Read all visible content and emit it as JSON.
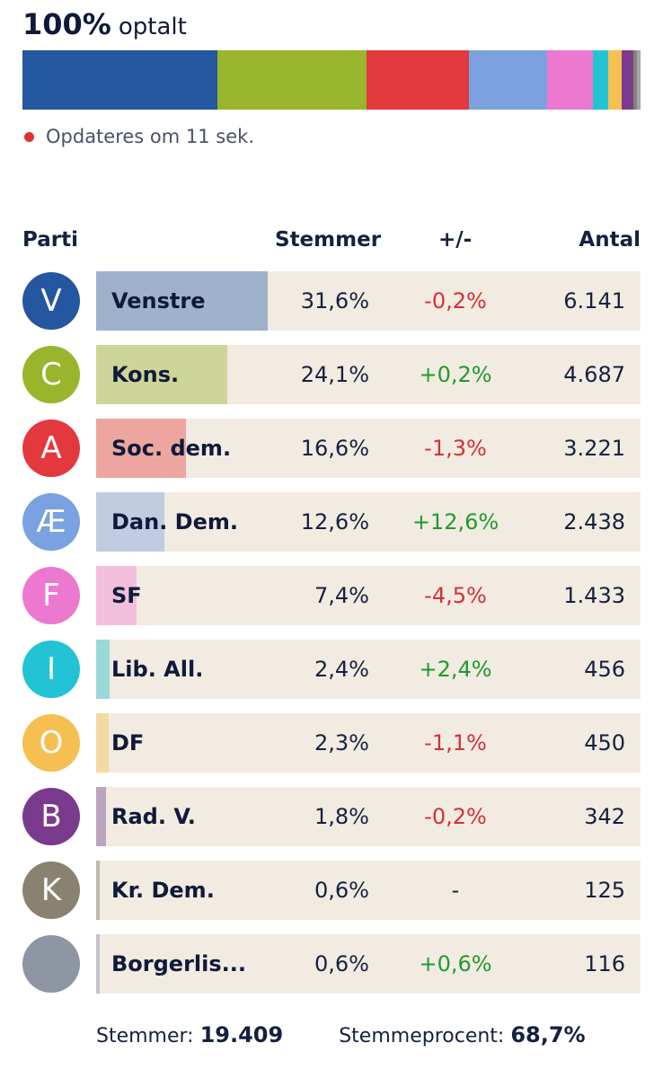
{
  "header": {
    "counted_pct": "100%",
    "counted_label": "optalt"
  },
  "update_text": "Opdateres om 11 sek.",
  "stack_bar": [
    {
      "party": "V",
      "value": 31.6,
      "color": "#2556a0"
    },
    {
      "party": "C",
      "value": 24.1,
      "color": "#99b52b"
    },
    {
      "party": "A",
      "value": 16.6,
      "color": "#e3383d"
    },
    {
      "party": "Æ",
      "value": 12.6,
      "color": "#7aa2e0"
    },
    {
      "party": "F",
      "value": 7.4,
      "color": "#ed78cf"
    },
    {
      "party": "I",
      "value": 2.4,
      "color": "#21c3d5"
    },
    {
      "party": "O",
      "value": 2.3,
      "color": "#f6bf52"
    },
    {
      "party": "B",
      "value": 1.8,
      "color": "#7a3b8f"
    },
    {
      "party": "K",
      "value": 0.6,
      "color": "#8a8271"
    },
    {
      "party": "other",
      "value": 0.6,
      "color": "#a0a6b4"
    }
  ],
  "table": {
    "headers": {
      "party": "Parti",
      "votes": "Stemmer",
      "diff": "+/-",
      "count": "Antal"
    },
    "rows": [
      {
        "letter": "V",
        "name": "Venstre",
        "pct": "31,6%",
        "value": 31.6,
        "diff": "-0,2%",
        "diff_sign": "neg",
        "count": "6.141",
        "color": "#2556a0",
        "fill_color": "#9fb1cb"
      },
      {
        "letter": "C",
        "name": "Kons.",
        "pct": "24,1%",
        "value": 24.1,
        "diff": "+0,2%",
        "diff_sign": "pos",
        "count": "4.687",
        "color": "#99b52b",
        "fill_color": "#cdd598"
      },
      {
        "letter": "A",
        "name": "Soc. dem.",
        "pct": "16,6%",
        "value": 16.6,
        "diff": "-1,3%",
        "diff_sign": "neg",
        "count": "3.221",
        "color": "#e3383d",
        "fill_color": "#eda69f"
      },
      {
        "letter": "Æ",
        "name": "Dan. Dem.",
        "pct": "12,6%",
        "value": 12.6,
        "diff": "+12,6%",
        "diff_sign": "pos",
        "count": "2.438",
        "color": "#7aa2e0",
        "fill_color": "#c0cce0"
      },
      {
        "letter": "F",
        "name": "SF",
        "pct": "7,4%",
        "value": 7.4,
        "diff": "-4,5%",
        "diff_sign": "neg",
        "count": "1.433",
        "color": "#ed78cf",
        "fill_color": "#f1bedb"
      },
      {
        "letter": "I",
        "name": "Lib. All.",
        "pct": "2,4%",
        "value": 2.4,
        "diff": "+2,4%",
        "diff_sign": "pos",
        "count": "456",
        "color": "#21c3d5",
        "fill_color": "#9ad8d8"
      },
      {
        "letter": "O",
        "name": "DF",
        "pct": "2,3%",
        "value": 2.3,
        "diff": "-1,1%",
        "diff_sign": "neg",
        "count": "450",
        "color": "#f6bf52",
        "fill_color": "#f5d9a4"
      },
      {
        "letter": "B",
        "name": "Rad. V.",
        "pct": "1,8%",
        "value": 1.8,
        "diff": "-0,2%",
        "diff_sign": "neg",
        "count": "342",
        "color": "#7a3b8f",
        "fill_color": "#bda4bf"
      },
      {
        "letter": "K",
        "name": "Kr. Dem.",
        "pct": "0,6%",
        "value": 0.6,
        "diff": "-",
        "diff_sign": "none",
        "count": "125",
        "color": "#8a8271",
        "fill_color": "#c2b9ab"
      },
      {
        "letter": "",
        "name": "Borgerlis...",
        "pct": "0,6%",
        "value": 0.6,
        "diff": "+0,6%",
        "diff_sign": "pos",
        "count": "116",
        "color": "#8e95a3",
        "fill_color": "#c4c4c6"
      }
    ]
  },
  "footer": {
    "votes_label": "Stemmer:",
    "votes_value": "19.409",
    "turnout_label": "Stemmeprocent:",
    "turnout_value": "68,7%"
  },
  "colors": {
    "negative": "#d4303a",
    "positive": "#1f9b2e",
    "neutral": "#15213f",
    "track": "#f2ebe1"
  }
}
